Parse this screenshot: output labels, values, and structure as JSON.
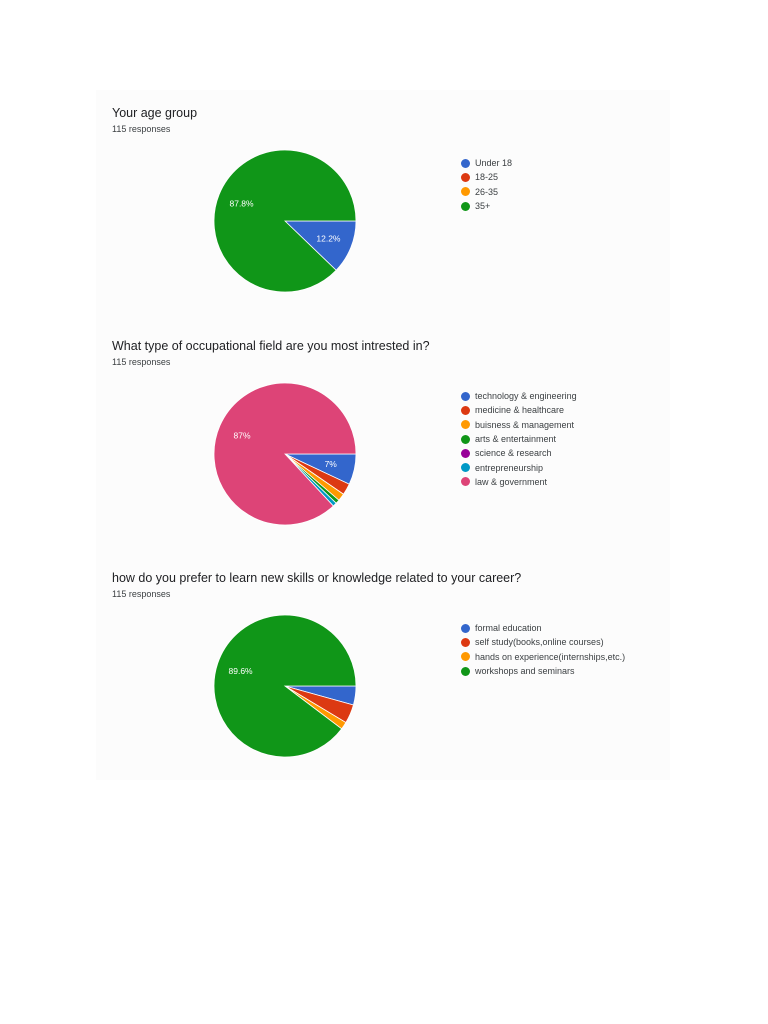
{
  "charts": [
    {
      "title": "Your age group",
      "responses": "115 responses"
    },
    {
      "title": "What type of occupational field are you most intrested in?",
      "responses": "115 responses"
    },
    {
      "title": "how do you prefer to learn new skills or knowledge related to your career?",
      "responses": "115 responses"
    }
  ],
  "chart_data": [
    {
      "type": "pie",
      "title": "Your age group",
      "subtitle": "115 responses",
      "legend_position": "right",
      "slices": [
        {
          "label": "Under 18",
          "value": 12.2,
          "color": "#3366cc",
          "data_label": "12.2%"
        },
        {
          "label": "18-25",
          "value": 0,
          "color": "#dc3912",
          "data_label": ""
        },
        {
          "label": "26-35",
          "value": 0,
          "color": "#ff9900",
          "data_label": ""
        },
        {
          "label": "35+",
          "value": 87.8,
          "color": "#109618",
          "data_label": "87.8%"
        }
      ]
    },
    {
      "type": "pie",
      "title": "What type of occupational field are you most intrested in?",
      "subtitle": "115 responses",
      "legend_position": "right",
      "slices": [
        {
          "label": "technology & engineering",
          "value": 7,
          "color": "#3366cc",
          "data_label": "7%"
        },
        {
          "label": "medicine & healthcare",
          "value": 2.6,
          "color": "#dc3912",
          "data_label": ""
        },
        {
          "label": "buisness & management",
          "value": 1.7,
          "color": "#ff9900",
          "data_label": ""
        },
        {
          "label": "arts & entertainment",
          "value": 0.9,
          "color": "#109618",
          "data_label": ""
        },
        {
          "label": "science & research",
          "value": 0,
          "color": "#990099",
          "data_label": ""
        },
        {
          "label": "entrepreneurship",
          "value": 0.9,
          "color": "#0099c6",
          "data_label": ""
        },
        {
          "label": "law & government",
          "value": 87,
          "color": "#dd4477",
          "data_label": "87%"
        }
      ]
    },
    {
      "type": "pie",
      "title": "how do you prefer to learn new skills or knowledge related to your career?",
      "subtitle": "115 responses",
      "legend_position": "right",
      "slices": [
        {
          "label": "formal education",
          "value": 4.3,
          "color": "#3366cc",
          "data_label": ""
        },
        {
          "label": "self study(books,online courses)",
          "value": 4.3,
          "color": "#dc3912",
          "data_label": ""
        },
        {
          "label": "hands on experience(internships,etc.)",
          "value": 1.7,
          "color": "#ff9900",
          "data_label": ""
        },
        {
          "label": "workshops and seminars",
          "value": 89.6,
          "color": "#109618",
          "data_label": "89.6%"
        }
      ]
    }
  ]
}
